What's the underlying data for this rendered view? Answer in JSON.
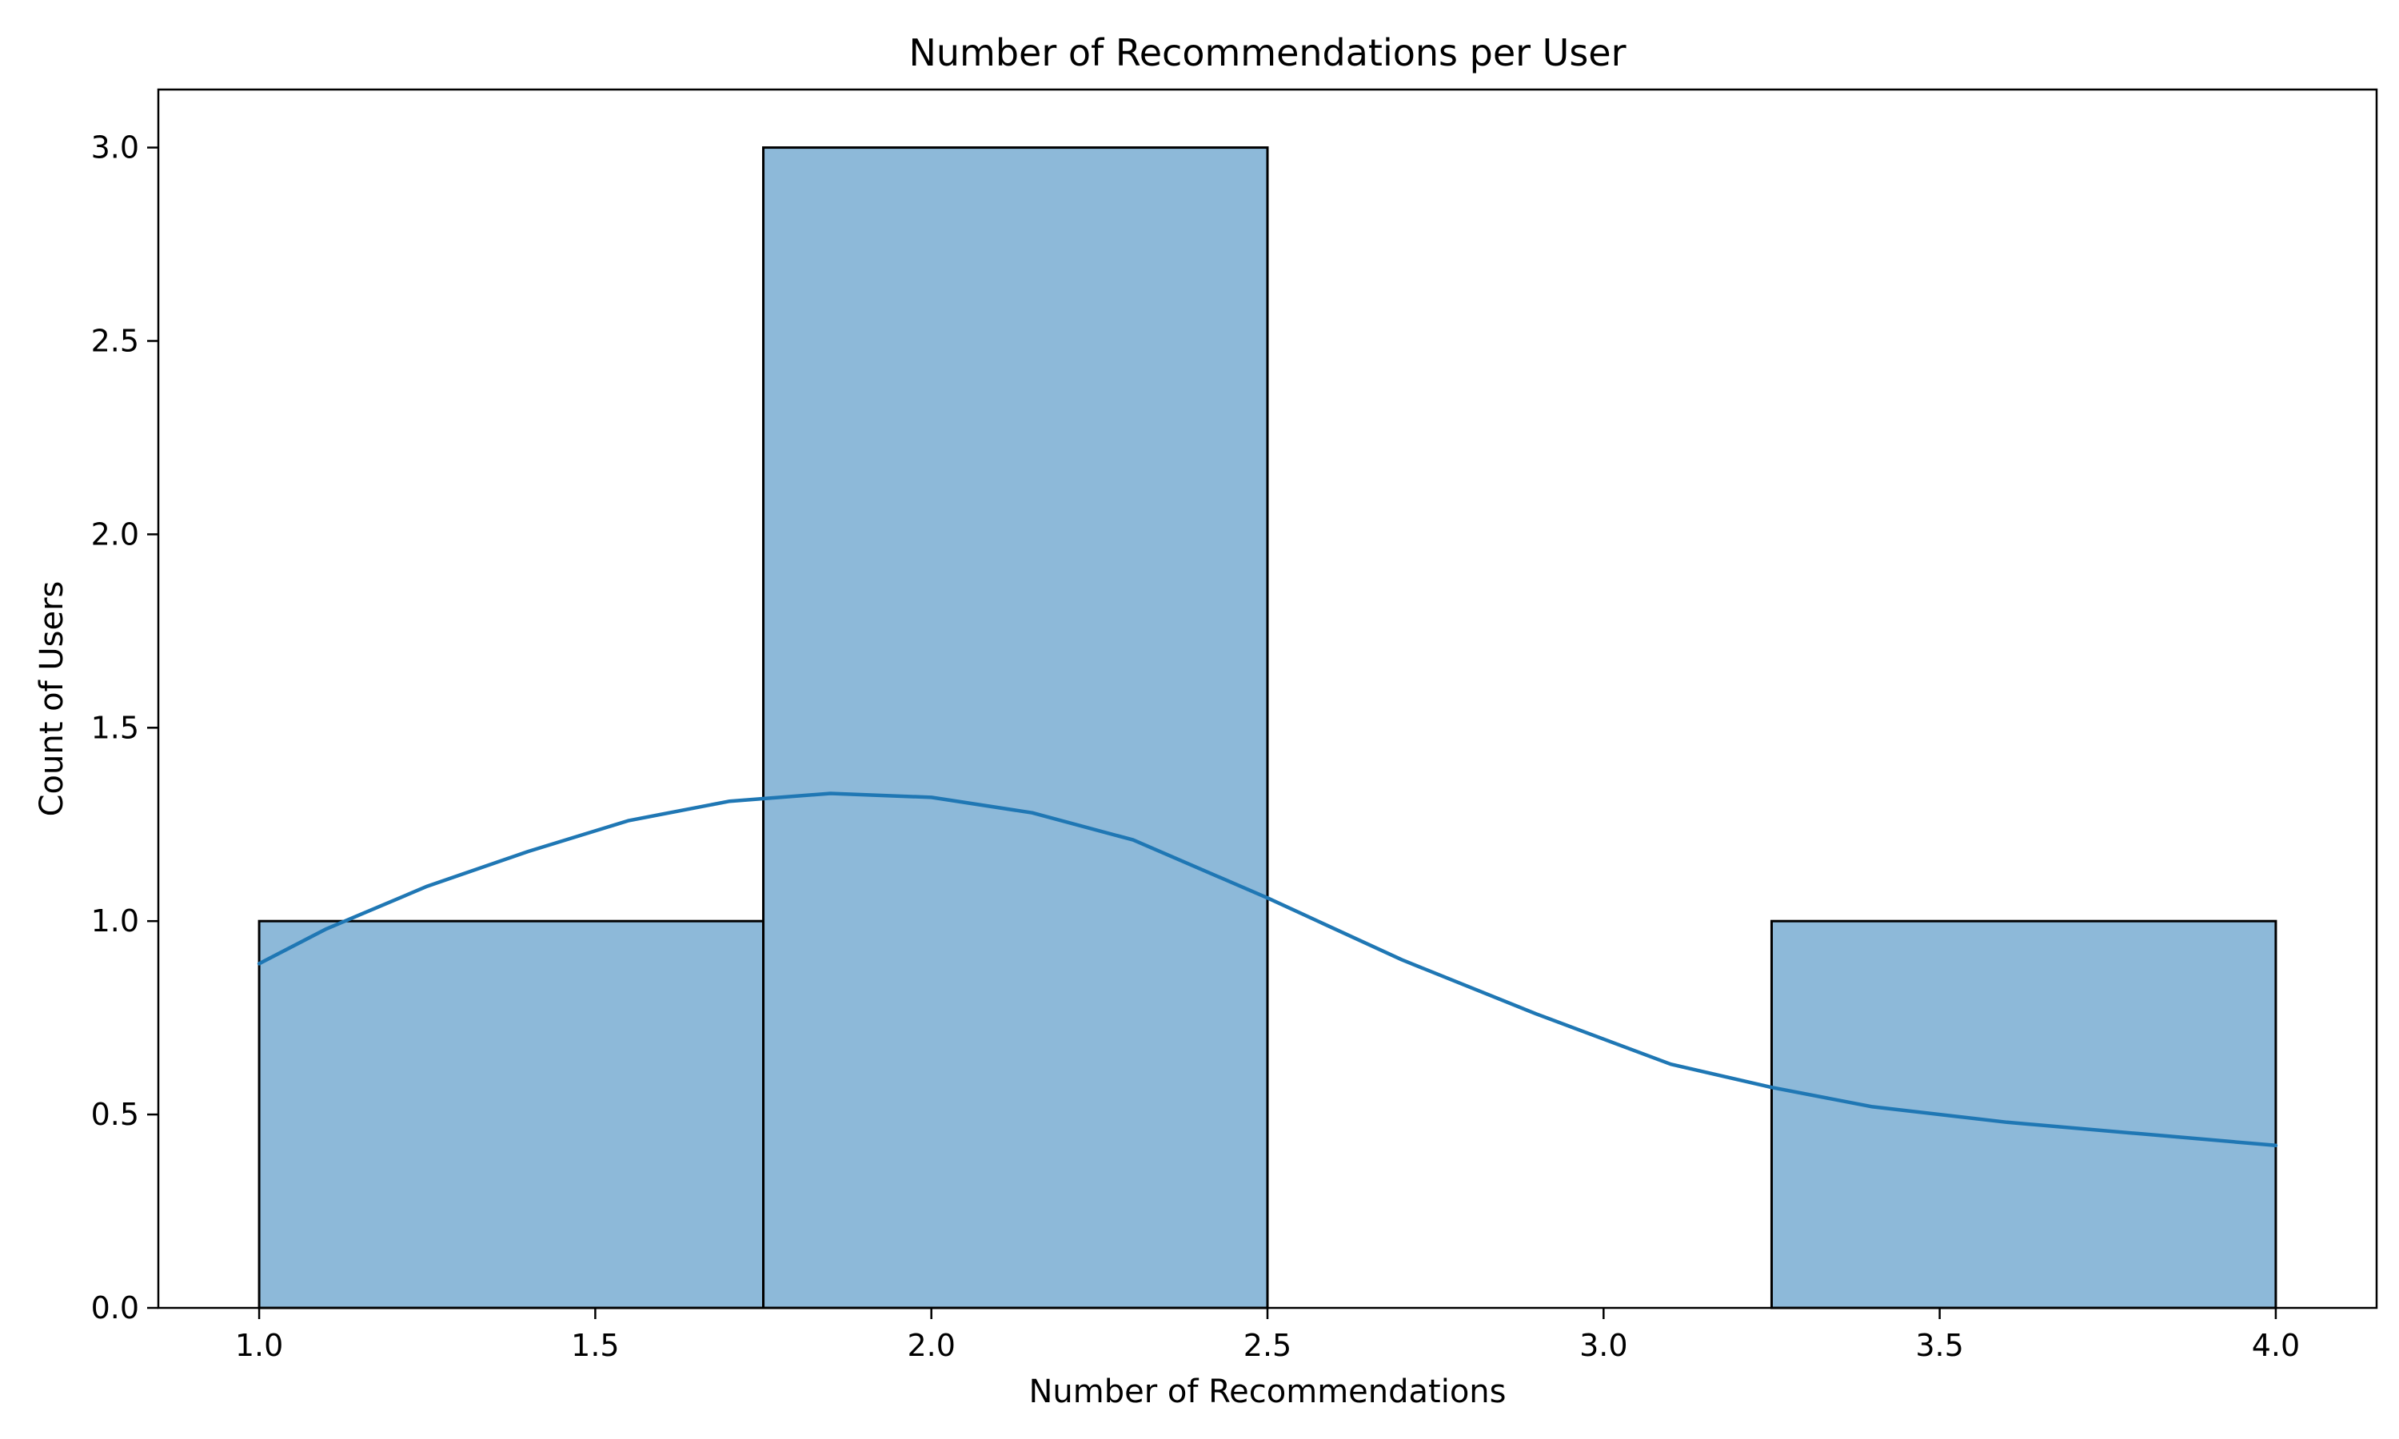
{
  "chart_data": {
    "type": "histogram",
    "title": "Number of Recommendations per User",
    "xlabel": "Number of Recommendations",
    "ylabel": "Count of Users",
    "xlim": [
      0.85,
      4.15
    ],
    "ylim": [
      0,
      3.15
    ],
    "xticks": [
      "1.0",
      "1.5",
      "2.0",
      "2.5",
      "3.0",
      "3.5",
      "4.0"
    ],
    "yticks": [
      "0.0",
      "0.5",
      "1.0",
      "1.5",
      "2.0",
      "2.5",
      "3.0"
    ],
    "grid": false,
    "bins": [
      {
        "start": 1.0,
        "end": 1.75,
        "count": 1
      },
      {
        "start": 1.75,
        "end": 2.5,
        "count": 3
      },
      {
        "start": 2.5,
        "end": 3.25,
        "count": 0
      },
      {
        "start": 3.25,
        "end": 4.0,
        "count": 1
      }
    ],
    "kde": {
      "x": [
        1.0,
        1.1,
        1.25,
        1.4,
        1.55,
        1.7,
        1.85,
        2.0,
        2.15,
        2.3,
        2.5,
        2.7,
        2.9,
        3.1,
        3.25,
        3.4,
        3.6,
        3.8,
        4.0
      ],
      "y": [
        0.89,
        0.98,
        1.09,
        1.18,
        1.26,
        1.31,
        1.33,
        1.32,
        1.28,
        1.21,
        1.06,
        0.9,
        0.76,
        0.63,
        0.57,
        0.52,
        0.48,
        0.45,
        0.42
      ]
    },
    "colors": {
      "bar_fill": "#8db9d9",
      "bar_edge": "#000000",
      "kde_line": "#1f77b4"
    }
  }
}
